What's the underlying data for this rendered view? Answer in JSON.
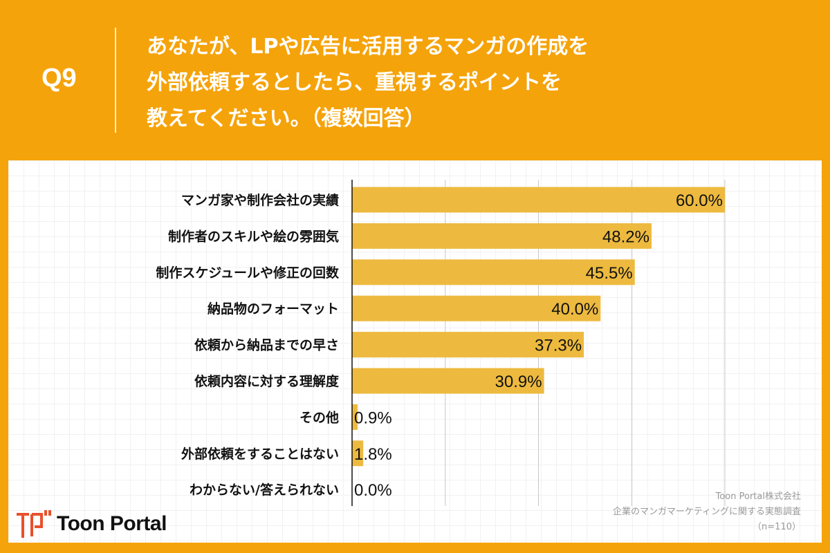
{
  "header": {
    "question_number": "Q9",
    "title_lines": [
      "あなたが、LPや広告に活用するマンガの作成を",
      "外部依頼するとしたら、重視するポイントを",
      "教えてください。（複数回答）"
    ]
  },
  "colors": {
    "background": "#F5A30A",
    "bar": "#EDBA3F",
    "logo": "#E8502A"
  },
  "chart_data": {
    "type": "bar",
    "orientation": "horizontal",
    "categories": [
      "マンガ家や制作会社の実績",
      "制作者のスキルや絵の雰囲気",
      "制作スケジュールや修正の回数",
      "納品物のフォーマット",
      "依頼から納品までの早さ",
      "依頼内容に対する理解度",
      "その他",
      "外部依頼をすることはない",
      "わからない/答えられない"
    ],
    "values": [
      60.0,
      48.2,
      45.5,
      40.0,
      37.3,
      30.9,
      0.9,
      1.8,
      0.0
    ],
    "data_labels": [
      "60.0%",
      "48.2%",
      "45.5%",
      "40.0%",
      "37.3%",
      "30.9%",
      "0.9%",
      "1.8%",
      "0.0%"
    ],
    "xlim": [
      0,
      60
    ],
    "gridlines": [
      15,
      30,
      45,
      60
    ],
    "grid": true
  },
  "source": {
    "line1": "Toon Portal株式会社",
    "line2": "企業のマンガマーケティングに関する実態調査",
    "line3": "（n=110）"
  },
  "logo": {
    "text": "Toon Portal"
  }
}
